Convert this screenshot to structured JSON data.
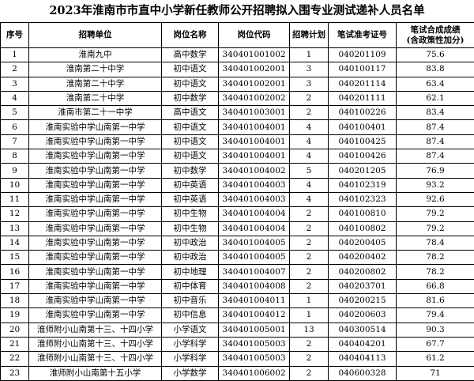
{
  "title": "2023年淮南市市直中小学新任教师公开招聘拟入围专业测试递补人员名单",
  "table": {
    "headers": [
      "序号",
      "招聘单位",
      "岗位名称",
      "岗位代码",
      "招聘计划",
      "笔试准考证号",
      [
        "笔试合成成绩",
        "(含政策性加分)"
      ]
    ],
    "rows": [
      [
        "1",
        "淮南九中",
        "高中数学",
        "340401001002",
        "1",
        "040201109",
        "75.6"
      ],
      [
        "2",
        "淮南第二十中学",
        "初中语文",
        "340401002001",
        "3",
        "040100117",
        "83.8"
      ],
      [
        "3",
        "淮南第二十中学",
        "初中语文",
        "340401002001",
        "3",
        "040201114",
        "63.4"
      ],
      [
        "4",
        "淮南第二十中学",
        "初中数学",
        "340401002002",
        "2",
        "040201111",
        "62.1"
      ],
      [
        "5",
        "淮南市第二十一中学",
        "高中语文",
        "340401003001",
        "2",
        "040100226",
        "83.4"
      ],
      [
        "6",
        "淮南实验中学山南第一中学",
        "初中语文",
        "340401004001",
        "4",
        "040100401",
        "87.4"
      ],
      [
        "7",
        "淮南实验中学山南第一中学",
        "初中语文",
        "340401004001",
        "4",
        "040100425",
        "87.4"
      ],
      [
        "8",
        "淮南实验中学山南第一中学",
        "初中语文",
        "340401004001",
        "4",
        "040100426",
        "87.4"
      ],
      [
        "9",
        "淮南实验中学山南第一中学",
        "初中数学",
        "340401004002",
        "5",
        "040201205",
        "76.9"
      ],
      [
        "10",
        "淮南实验中学山南第一中学",
        "初中英语",
        "340401004003",
        "4",
        "040102319",
        "93.2"
      ],
      [
        "11",
        "淮南实验中学山南第一中学",
        "初中英语",
        "340401004003",
        "4",
        "040102323",
        "92.6"
      ],
      [
        "12",
        "淮南实验中学山南第一中学",
        "初中生物",
        "340401004004",
        "2",
        "040100810",
        "79.2"
      ],
      [
        "13",
        "淮南实验中学山南第一中学",
        "初中生物",
        "340401004004",
        "2",
        "040100802",
        "79.2"
      ],
      [
        "14",
        "淮南实验中学山南第一中学",
        "初中政治",
        "340401004005",
        "2",
        "040200405",
        "78.4"
      ],
      [
        "15",
        "淮南实验中学山南第一中学",
        "初中政治",
        "340401004005",
        "2",
        "040200402",
        "78.2"
      ],
      [
        "16",
        "淮南实验中学山南第一中学",
        "初中地理",
        "340401004007",
        "2",
        "040200802",
        "78.2"
      ],
      [
        "17",
        "淮南实验中学山南第一中学",
        "初中体育",
        "340401004008",
        "2",
        "040203701",
        "66.8"
      ],
      [
        "18",
        "淮南实验中学山南第一中学",
        "初中音乐",
        "340401004011",
        "1",
        "040200215",
        "81.6"
      ],
      [
        "19",
        "淮南实验中学山南第一中学",
        "初中信息",
        "340401004012",
        "1",
        "040200603",
        "79.4"
      ],
      [
        "20",
        "淮师附小山南第十三、十四小学",
        "小学语文",
        "340401005001",
        "13",
        "040300514",
        "90.3"
      ],
      [
        "21",
        "淮师附小山南第十三、十四小学",
        "小学科学",
        "340401005003",
        "2",
        "040404201",
        "67.7"
      ],
      [
        "22",
        "淮师附小山南第十三、十四小学",
        "小学科学",
        "340401005003",
        "2",
        "040404113",
        "61.2"
      ],
      [
        "23",
        "淮师附小山南第十五小学",
        "小学数学",
        "340401006002",
        "2",
        "040600328",
        "71"
      ]
    ]
  }
}
